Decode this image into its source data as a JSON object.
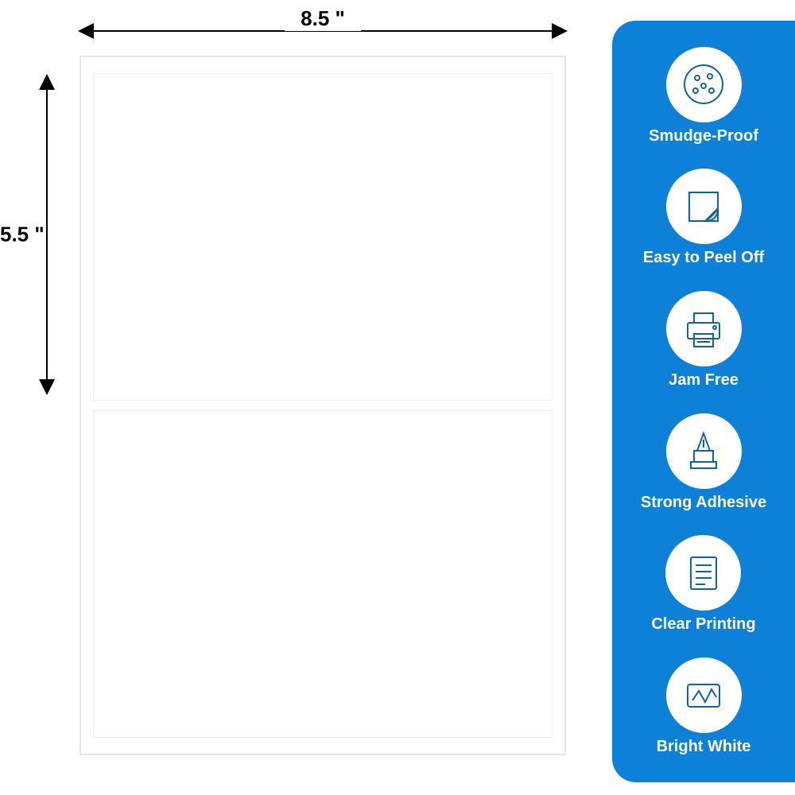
{
  "dimensions": {
    "width_label": "8.5 \"",
    "height_label": "5.5 \""
  },
  "sheet": {
    "border_color": "#e6e6e6",
    "panel_border_color": "#ededed",
    "background_color": "#ffffff",
    "panels": 2
  },
  "feature_panel": {
    "background_color": "#0d80d8",
    "icon_bg_color": "#ffffff",
    "text_color": "#ffffff",
    "border_radius": 30,
    "icon_stroke_color": "#1062a3"
  },
  "features": [
    {
      "icon": "smudge-proof-icon",
      "label": "Smudge-Proof"
    },
    {
      "icon": "peel-off-icon",
      "label": "Easy to Peel Off"
    },
    {
      "icon": "printer-icon",
      "label": "Jam Free"
    },
    {
      "icon": "adhesive-icon",
      "label": "Strong Adhesive"
    },
    {
      "icon": "document-icon",
      "label": "Clear Printing"
    },
    {
      "icon": "bright-white-icon",
      "label": "Bright White"
    }
  ],
  "styling": {
    "dimension_font_size": 26,
    "dimension_color": "#000000",
    "arrow_color": "#000000",
    "feature_label_font_size": 20,
    "icon_diameter": 95
  }
}
